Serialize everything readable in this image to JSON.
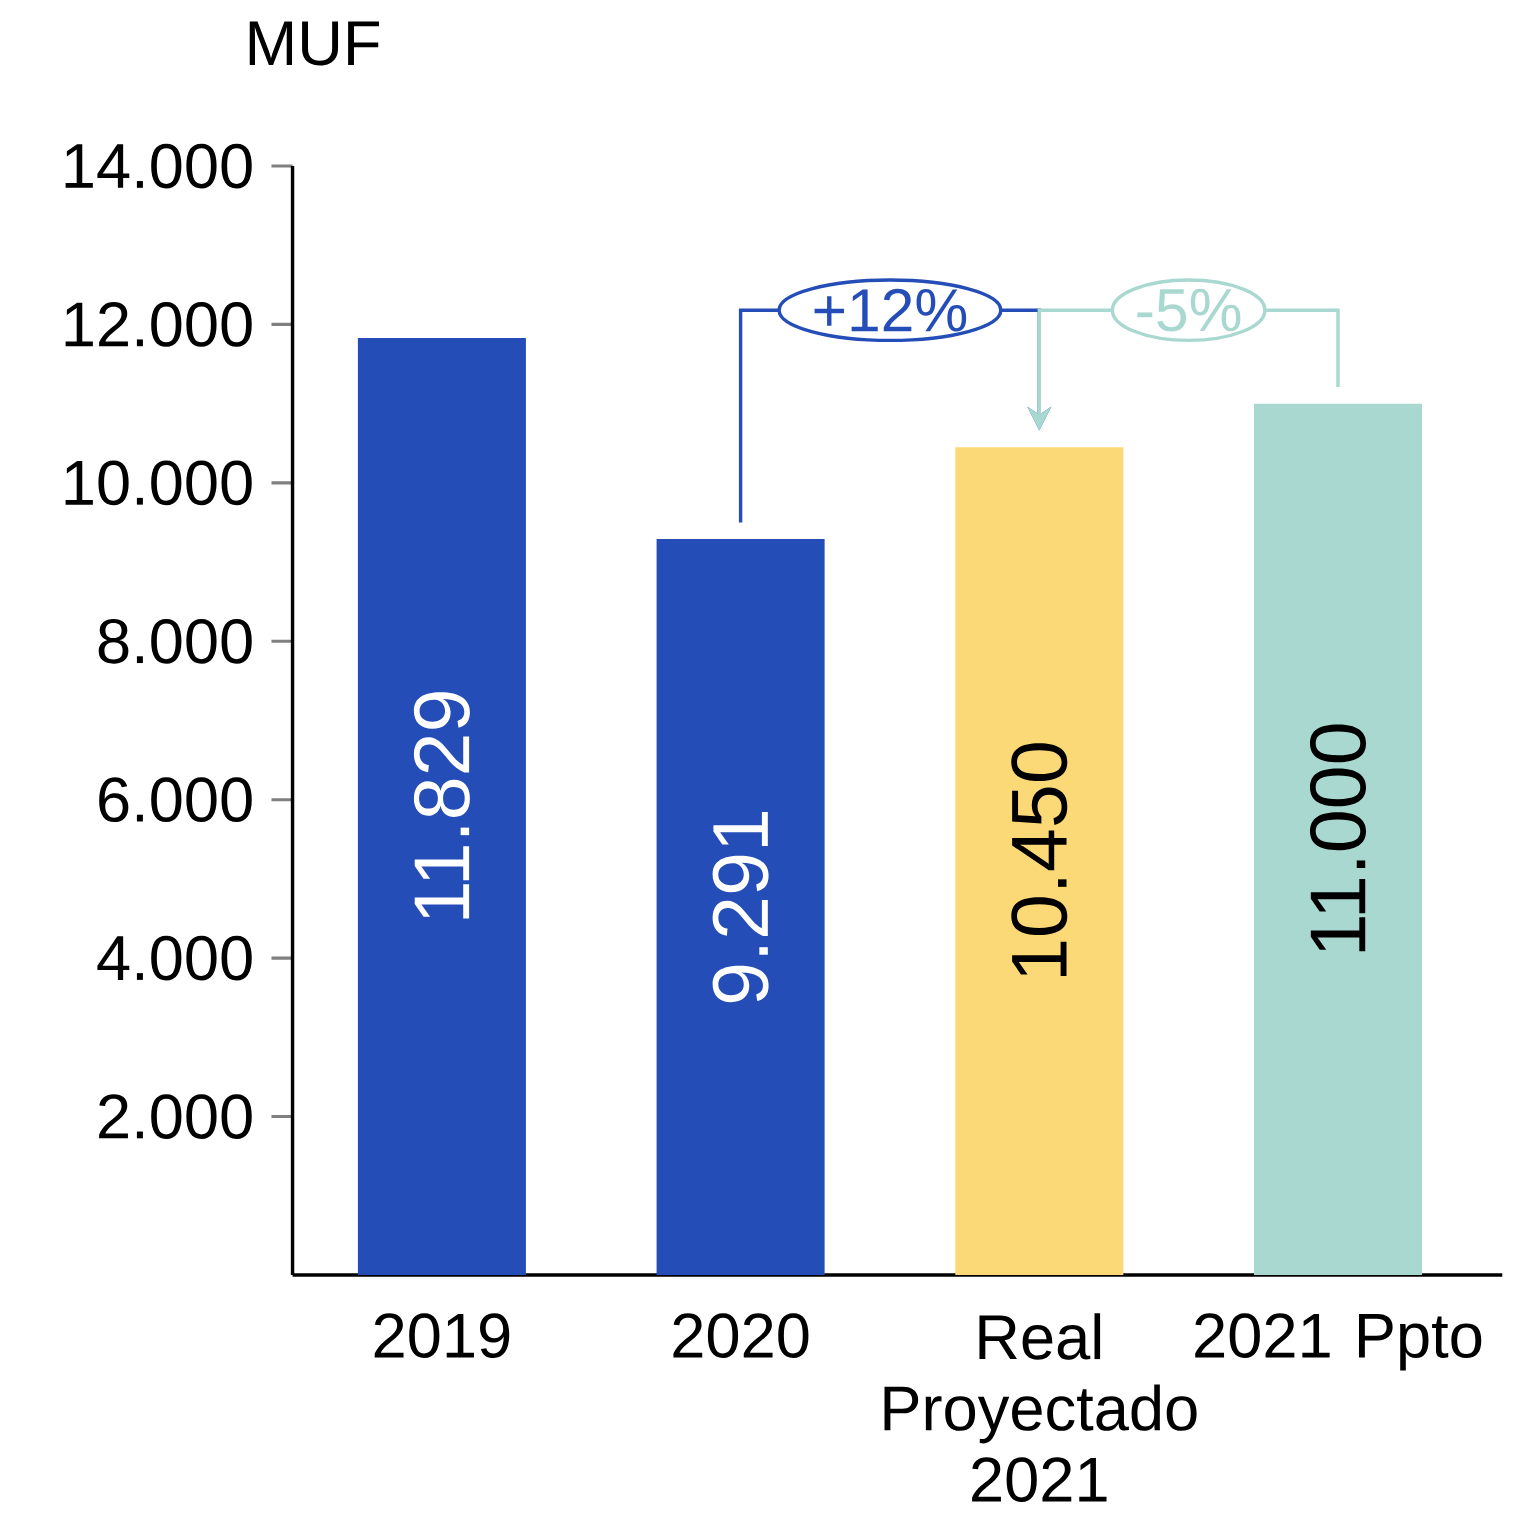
{
  "chart_data": {
    "type": "bar",
    "ylabel": "MUF",
    "categories": [
      "2019",
      "2020",
      "Real Proyectado 2021",
      "2021 Ppto"
    ],
    "values": [
      11829,
      9291,
      10450,
      11000
    ],
    "colors": [
      "#244db7",
      "#244db7",
      "#fcd977",
      "#a8d8d0"
    ],
    "value_labels": [
      "11.829",
      "9.291",
      "10.450",
      "11.000"
    ],
    "ylim": [
      0,
      14000
    ],
    "yticks": [
      {
        "value": 2000,
        "label": "2.000"
      },
      {
        "value": 4000,
        "label": "4.000"
      },
      {
        "value": 6000,
        "label": "6.000"
      },
      {
        "value": 8000,
        "label": "8.000"
      },
      {
        "value": 10000,
        "label": "10.000"
      },
      {
        "value": 12000,
        "label": "12.000"
      },
      {
        "value": 14000,
        "label": "14.000"
      }
    ],
    "annotations": [
      "+12%",
      "-5%"
    ],
    "grid": false
  }
}
